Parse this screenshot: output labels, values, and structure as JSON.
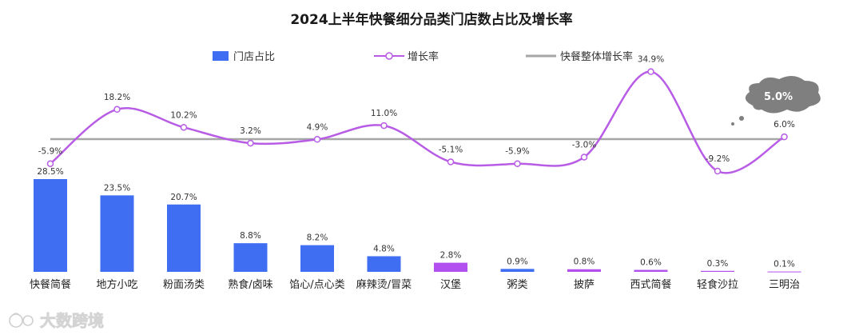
{
  "chart_data": {
    "type": "bar",
    "title": "2024上半年快餐细分品类门店数占比及增长率",
    "categories": [
      "快餐简餐",
      "地方小吃",
      "粉面汤类",
      "熟食/卤味",
      "馅心/点心类",
      "麻辣烫/冒菜",
      "汉堡",
      "粥类",
      "披萨",
      "西式简餐",
      "轻食沙拉",
      "三明治"
    ],
    "series": [
      {
        "name": "门店占比",
        "kind": "bar",
        "color": "#3f6ef2",
        "values": [
          28.5,
          23.5,
          20.7,
          8.8,
          8.2,
          4.8,
          2.8,
          0.9,
          0.8,
          0.6,
          0.3,
          0.1
        ],
        "labels": [
          "28.5%",
          "23.5%",
          "20.7%",
          "8.8%",
          "8.2%",
          "4.8%",
          "2.8%",
          "0.9%",
          "0.8%",
          "0.6%",
          "0.3%",
          "0.1%"
        ]
      },
      {
        "name": "增长率",
        "kind": "line",
        "color": "#b85ce6",
        "values": [
          -5.9,
          18.2,
          10.2,
          3.2,
          4.9,
          11.0,
          -5.1,
          -5.9,
          -3.0,
          34.9,
          -9.2,
          6.0
        ],
        "labels": [
          "-5.9%",
          "18.2%",
          "10.2%",
          "3.2%",
          "4.9%",
          "11.0%",
          "-5.1%",
          "-5.9%",
          "-3.0%",
          "34.9%",
          "-9.2%",
          "6.0%"
        ]
      },
      {
        "name": "快餐整体增长率",
        "kind": "reference-line",
        "color": "#a6a6a6",
        "value": 5.0,
        "label": "5.0%"
      }
    ],
    "bar_colors": [
      "#3f6ef2",
      "#3f6ef2",
      "#3f6ef2",
      "#3f6ef2",
      "#3f6ef2",
      "#3f6ef2",
      "#b150ef",
      "#3f6ef2",
      "#b150ef",
      "#b150ef",
      "#b150ef",
      "#b150ef"
    ],
    "legend_position": "top",
    "grid": false,
    "bubble_color": "#7f7f7f"
  },
  "watermark": {
    "icon": "da-shu-logo-icon",
    "text": "大数跨境"
  }
}
